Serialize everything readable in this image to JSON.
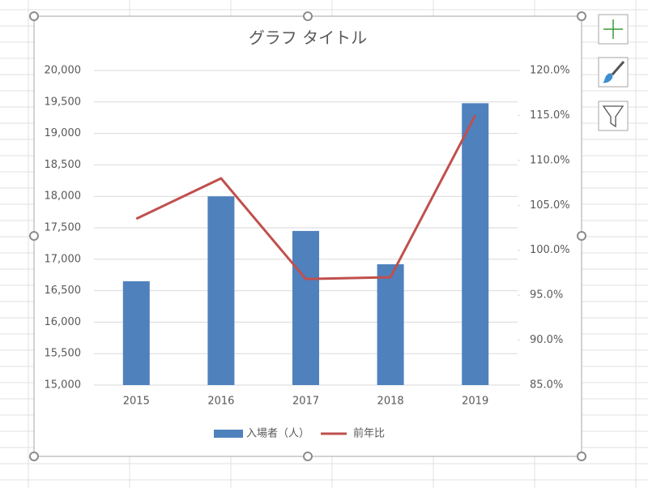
{
  "chart_data": {
    "type": "bar",
    "title": "グラフ タイトル",
    "categories": [
      "2015",
      "2016",
      "2017",
      "2018",
      "2019"
    ],
    "series": [
      {
        "name": "入場者（人）",
        "type": "bar",
        "color": "#4f81bd",
        "values": [
          16650,
          18000,
          17450,
          16920,
          19480
        ]
      },
      {
        "name": "前年比",
        "type": "line",
        "axis": "y2",
        "color": "#c0504d",
        "values": [
          103.5,
          108.0,
          96.8,
          97.0,
          115.0
        ]
      }
    ],
    "ylim": [
      15000,
      20000
    ],
    "yticks": [
      {
        "value": 15000,
        "label": "15,000"
      },
      {
        "value": 15500,
        "label": "15,500"
      },
      {
        "value": 16000,
        "label": "16,000"
      },
      {
        "value": 16500,
        "label": "16,500"
      },
      {
        "value": 17000,
        "label": "17,000"
      },
      {
        "value": 17500,
        "label": "17,500"
      },
      {
        "value": 18000,
        "label": "18,000"
      },
      {
        "value": 18500,
        "label": "18,500"
      },
      {
        "value": 19000,
        "label": "19,000"
      },
      {
        "value": 19500,
        "label": "19,500"
      },
      {
        "value": 20000,
        "label": "20,000"
      }
    ],
    "y2lim": [
      85,
      120
    ],
    "y2ticks": [
      {
        "value": 85,
        "label": "85.0%"
      },
      {
        "value": 90,
        "label": "90.0%"
      },
      {
        "value": 95,
        "label": "95.0%"
      },
      {
        "value": 100,
        "label": "100.0%"
      },
      {
        "value": 105,
        "label": "105.0%"
      },
      {
        "value": 110,
        "label": "110.0%"
      },
      {
        "value": 115,
        "label": "115.0%"
      },
      {
        "value": 120,
        "label": "120.0%"
      }
    ],
    "grid": true,
    "legend": "bottom"
  }
}
